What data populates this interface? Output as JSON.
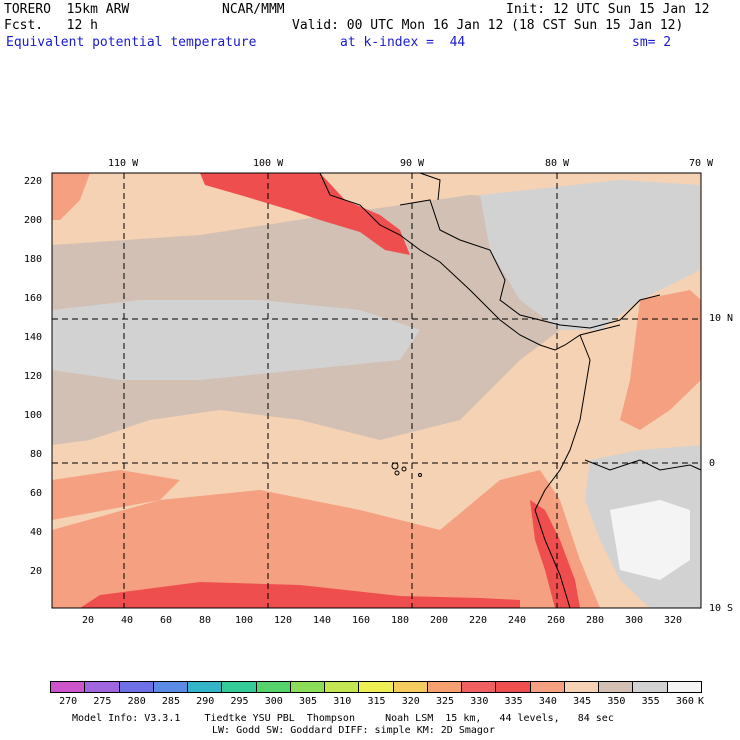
{
  "header": {
    "model": "TORERO  15km ARW",
    "center": "NCAR/MMM",
    "init": "Init: 12 UTC Sun 15 Jan 12",
    "fcst": "Fcst.   12 h",
    "valid": "Valid: 00 UTC Mon 16 Jan 12 (18 CST Sun 15 Jan 12)",
    "field": "Equivalent potential temperature",
    "level": "at k-index =  44",
    "smooth": "sm= 2"
  },
  "axes": {
    "top_lon": [
      "110 W",
      "100 W",
      "90 W",
      "80 W",
      "70 W"
    ],
    "right_lat": [
      "10 N",
      "0",
      "10 S"
    ],
    "left_y": [
      "20",
      "40",
      "60",
      "80",
      "100",
      "120",
      "140",
      "160",
      "180",
      "200",
      "220"
    ],
    "bottom_x": [
      "20",
      "40",
      "60",
      "80",
      "100",
      "120",
      "140",
      "160",
      "180",
      "200",
      "220",
      "240",
      "260",
      "280",
      "300",
      "320"
    ]
  },
  "colorbar": {
    "labels": [
      "270",
      "275",
      "280",
      "285",
      "290",
      "295",
      "300",
      "305",
      "310",
      "315",
      "320",
      "325",
      "330",
      "335",
      "340",
      "345",
      "350",
      "355",
      "360"
    ],
    "unit": "K",
    "colors": [
      "#cc55cc",
      "#a066dd",
      "#7070e6",
      "#5a8ce6",
      "#33b4c8",
      "#33cc99",
      "#55d36a",
      "#8cdd5a",
      "#c3e652",
      "#eeee55",
      "#f5cc60",
      "#f5a070",
      "#f06060",
      "#ee4e4e",
      "#f5a080",
      "#f5d2b4",
      "#d2c0b4",
      "#d2d2d2",
      "#f4f4f4"
    ]
  },
  "footer": {
    "line1": "Model Info: V3.3.1    Tiedtke YSU PBL  Thompson     Noah LSM  15 km,   44 levels,   84 sec",
    "line2": "LW: Godd SW: Goddard DIFF: simple KM: 2D Smagor"
  }
}
